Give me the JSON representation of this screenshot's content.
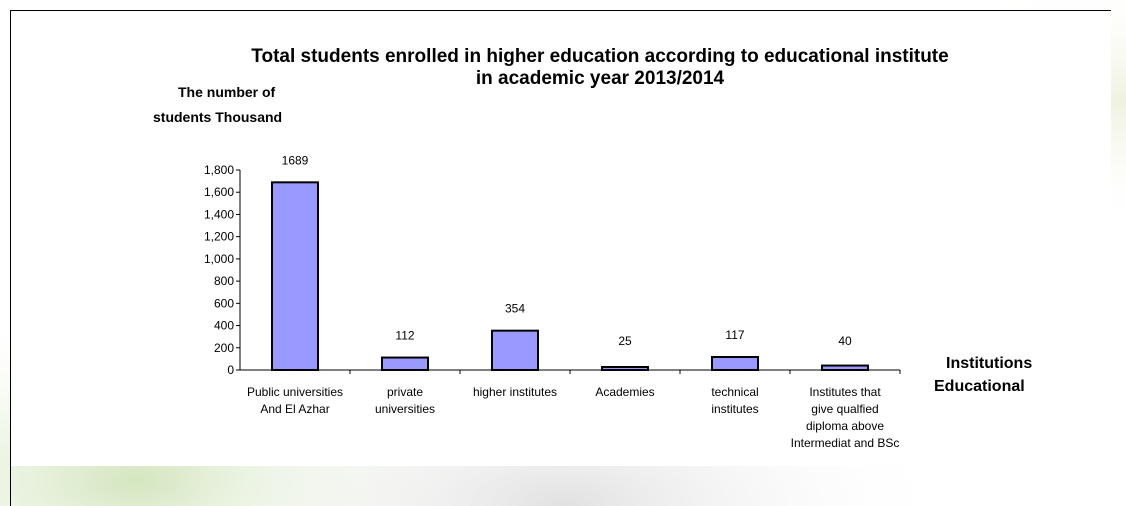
{
  "chart_data": {
    "type": "bar",
    "title": "Total students enrolled in higher education according to educational institute",
    "subtitle": "in academic year 2013/2014",
    "ylabel_lines": [
      "The number of",
      "students Thousand"
    ],
    "xlabel_lines": [
      "Institutions",
      "Educational"
    ],
    "categories": [
      [
        "Public universities",
        "And  El Azhar"
      ],
      [
        "private",
        "universities"
      ],
      [
        "higher institutes"
      ],
      [
        "Academies"
      ],
      [
        "technical",
        "institutes"
      ],
      [
        "Institutes that",
        "give qualfied",
        "diploma above",
        "Intermediat and BSc"
      ]
    ],
    "values": [
      1689,
      112,
      354,
      25,
      117,
      40
    ],
    "data_labels": [
      "1689",
      "112",
      "354",
      "25",
      "117",
      "40"
    ],
    "yticks": [
      "0",
      "200",
      "400",
      "600",
      "800",
      "1,000",
      "1,200",
      "1,400",
      "1,600",
      "1,800"
    ],
    "ylim": [
      0,
      1800
    ],
    "bar_color": "#9999ff",
    "bar_border": "#000000",
    "grid": false,
    "legend": "none"
  }
}
